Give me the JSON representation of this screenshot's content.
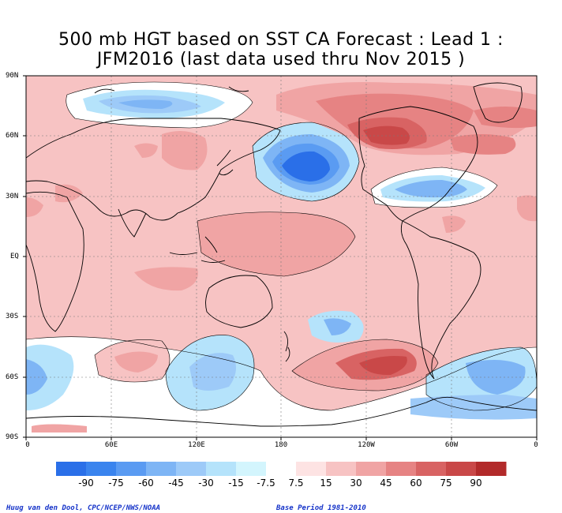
{
  "title": {
    "line1": "500 mb HGT based on SST CA Forecast : Lead 1 :",
    "line2": "JFM2016 (last data used thru Nov 2015 )"
  },
  "axes": {
    "y_ticks": [
      "90N",
      "60N",
      "30N",
      "EQ",
      "30S",
      "60S",
      "90S"
    ],
    "x_ticks": [
      "0",
      "60E",
      "120E",
      "180",
      "120W",
      "60W",
      "0"
    ]
  },
  "colorbar": {
    "labels": [
      "-90",
      "-75",
      "-60",
      "-45",
      "-30",
      "-15",
      "-7.5",
      "7.5",
      "15",
      "30",
      "45",
      "60",
      "75",
      "90"
    ],
    "colors": [
      "#2a6fe8",
      "#3a84ee",
      "#5a9bf2",
      "#7eb5f5",
      "#9dcaf8",
      "#b5e3fb",
      "#d3f5fd",
      "#ffffff",
      "#fde3e3",
      "#f7c3c3",
      "#f0a4a4",
      "#e68383",
      "#d86363",
      "#c94848",
      "#b22a2a"
    ]
  },
  "credits": {
    "left": "Huug van den Dool, CPC/NCEP/NWS/NOAA",
    "right": "Base Period 1981-2010"
  }
}
